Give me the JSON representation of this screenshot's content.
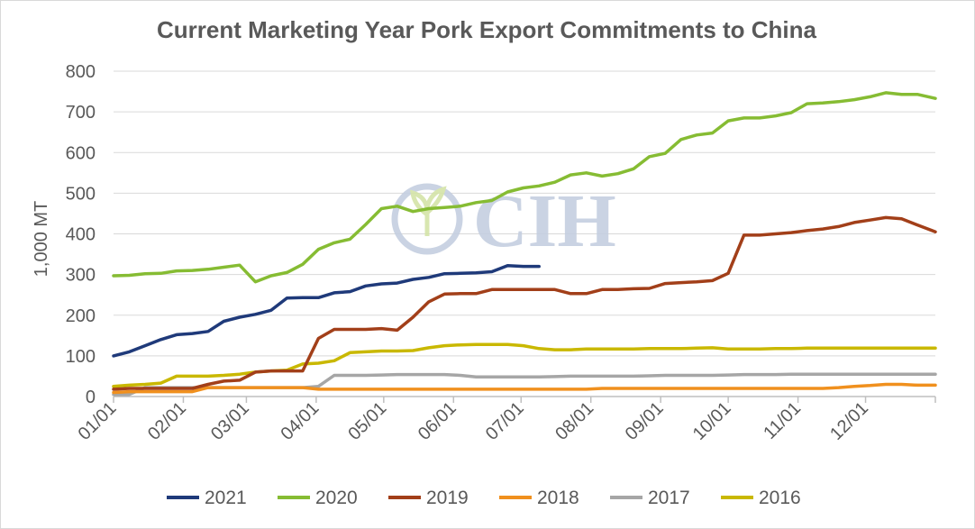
{
  "chart_data": {
    "type": "line",
    "title": "Current Marketing Year Pork Export Commitments to China",
    "ylabel": "1,000 MT",
    "xlabel": "",
    "ylim": [
      0,
      800
    ],
    "yticks": [
      "0",
      "100",
      "200",
      "300",
      "400",
      "500",
      "600",
      "700",
      "800"
    ],
    "xlim_day": [
      0,
      365
    ],
    "xticks": [
      {
        "label": "01/01",
        "day": 0
      },
      {
        "label": "02/01",
        "day": 31
      },
      {
        "label": "03/01",
        "day": 59
      },
      {
        "label": "04/01",
        "day": 90
      },
      {
        "label": "05/01",
        "day": 120
      },
      {
        "label": "06/01",
        "day": 151
      },
      {
        "label": "07/01",
        "day": 181
      },
      {
        "label": "08/01",
        "day": 212
      },
      {
        "label": "09/01",
        "day": 243
      },
      {
        "label": "10/01",
        "day": 273
      },
      {
        "label": "11/01",
        "day": 304
      },
      {
        "label": "12/01",
        "day": 334
      },
      {
        "label": "",
        "day": 365
      }
    ],
    "grid": true,
    "legend_position": "bottom",
    "watermark": "CIH",
    "series": [
      {
        "name": "2021",
        "color": "#1f3a7a",
        "points": [
          [
            0,
            100
          ],
          [
            7,
            110
          ],
          [
            14,
            125
          ],
          [
            21,
            140
          ],
          [
            28,
            152
          ],
          [
            35,
            155
          ],
          [
            42,
            160
          ],
          [
            49,
            185
          ],
          [
            56,
            195
          ],
          [
            63,
            202
          ],
          [
            70,
            212
          ],
          [
            77,
            242
          ],
          [
            84,
            243
          ],
          [
            91,
            243
          ],
          [
            98,
            255
          ],
          [
            105,
            258
          ],
          [
            112,
            272
          ],
          [
            119,
            277
          ],
          [
            126,
            279
          ],
          [
            133,
            288
          ],
          [
            140,
            293
          ],
          [
            147,
            302
          ],
          [
            154,
            303
          ],
          [
            161,
            304
          ],
          [
            168,
            307
          ],
          [
            175,
            322
          ],
          [
            182,
            320
          ],
          [
            189,
            320
          ]
        ]
      },
      {
        "name": "2020",
        "color": "#86bc33",
        "points": [
          [
            0,
            297
          ],
          [
            7,
            298
          ],
          [
            14,
            302
          ],
          [
            21,
            303
          ],
          [
            28,
            309
          ],
          [
            35,
            310
          ],
          [
            42,
            313
          ],
          [
            49,
            318
          ],
          [
            56,
            323
          ],
          [
            63,
            282
          ],
          [
            70,
            297
          ],
          [
            77,
            305
          ],
          [
            84,
            325
          ],
          [
            91,
            362
          ],
          [
            98,
            378
          ],
          [
            105,
            387
          ],
          [
            112,
            423
          ],
          [
            119,
            462
          ],
          [
            126,
            468
          ],
          [
            133,
            455
          ],
          [
            140,
            462
          ],
          [
            147,
            465
          ],
          [
            154,
            468
          ],
          [
            161,
            477
          ],
          [
            168,
            482
          ],
          [
            175,
            503
          ],
          [
            182,
            513
          ],
          [
            189,
            518
          ],
          [
            196,
            527
          ],
          [
            203,
            545
          ],
          [
            210,
            550
          ],
          [
            217,
            542
          ],
          [
            224,
            548
          ],
          [
            231,
            560
          ],
          [
            238,
            590
          ],
          [
            245,
            598
          ],
          [
            252,
            632
          ],
          [
            259,
            643
          ],
          [
            266,
            648
          ],
          [
            273,
            678
          ],
          [
            280,
            685
          ],
          [
            287,
            685
          ],
          [
            294,
            690
          ],
          [
            301,
            698
          ],
          [
            308,
            720
          ],
          [
            315,
            722
          ],
          [
            322,
            725
          ],
          [
            329,
            730
          ],
          [
            336,
            737
          ],
          [
            343,
            747
          ],
          [
            350,
            743
          ],
          [
            357,
            743
          ],
          [
            365,
            733
          ]
        ]
      },
      {
        "name": "2019",
        "color": "#a23f19",
        "points": [
          [
            0,
            18
          ],
          [
            7,
            20
          ],
          [
            14,
            20
          ],
          [
            21,
            20
          ],
          [
            28,
            20
          ],
          [
            35,
            20
          ],
          [
            42,
            30
          ],
          [
            49,
            38
          ],
          [
            56,
            40
          ],
          [
            63,
            60
          ],
          [
            70,
            63
          ],
          [
            77,
            63
          ],
          [
            84,
            63
          ],
          [
            91,
            143
          ],
          [
            98,
            165
          ],
          [
            105,
            165
          ],
          [
            112,
            165
          ],
          [
            119,
            167
          ],
          [
            126,
            163
          ],
          [
            133,
            195
          ],
          [
            140,
            233
          ],
          [
            147,
            252
          ],
          [
            154,
            253
          ],
          [
            161,
            253
          ],
          [
            168,
            263
          ],
          [
            175,
            263
          ],
          [
            182,
            263
          ],
          [
            189,
            263
          ],
          [
            196,
            263
          ],
          [
            203,
            253
          ],
          [
            210,
            253
          ],
          [
            217,
            263
          ],
          [
            224,
            263
          ],
          [
            231,
            265
          ],
          [
            238,
            266
          ],
          [
            245,
            278
          ],
          [
            252,
            280
          ],
          [
            259,
            282
          ],
          [
            266,
            285
          ],
          [
            273,
            303
          ],
          [
            280,
            397
          ],
          [
            287,
            397
          ],
          [
            294,
            400
          ],
          [
            301,
            403
          ],
          [
            308,
            408
          ],
          [
            315,
            412
          ],
          [
            322,
            418
          ],
          [
            329,
            428
          ],
          [
            336,
            434
          ],
          [
            343,
            440
          ],
          [
            350,
            437
          ],
          [
            357,
            422
          ],
          [
            365,
            405
          ]
        ]
      },
      {
        "name": "2018",
        "color": "#f0901e",
        "points": [
          [
            0,
            10
          ],
          [
            7,
            12
          ],
          [
            14,
            12
          ],
          [
            21,
            12
          ],
          [
            28,
            12
          ],
          [
            35,
            12
          ],
          [
            42,
            22
          ],
          [
            49,
            22
          ],
          [
            56,
            22
          ],
          [
            63,
            22
          ],
          [
            70,
            22
          ],
          [
            77,
            22
          ],
          [
            84,
            22
          ],
          [
            91,
            18
          ],
          [
            98,
            18
          ],
          [
            105,
            18
          ],
          [
            112,
            18
          ],
          [
            119,
            18
          ],
          [
            126,
            18
          ],
          [
            133,
            18
          ],
          [
            140,
            18
          ],
          [
            147,
            18
          ],
          [
            154,
            18
          ],
          [
            161,
            18
          ],
          [
            168,
            18
          ],
          [
            175,
            18
          ],
          [
            182,
            18
          ],
          [
            189,
            18
          ],
          [
            196,
            18
          ],
          [
            203,
            18
          ],
          [
            210,
            18
          ],
          [
            217,
            20
          ],
          [
            224,
            20
          ],
          [
            231,
            20
          ],
          [
            238,
            20
          ],
          [
            245,
            20
          ],
          [
            252,
            20
          ],
          [
            259,
            20
          ],
          [
            266,
            20
          ],
          [
            273,
            20
          ],
          [
            280,
            20
          ],
          [
            287,
            20
          ],
          [
            294,
            20
          ],
          [
            301,
            20
          ],
          [
            308,
            20
          ],
          [
            315,
            20
          ],
          [
            322,
            22
          ],
          [
            329,
            25
          ],
          [
            336,
            27
          ],
          [
            343,
            30
          ],
          [
            350,
            30
          ],
          [
            357,
            28
          ],
          [
            365,
            28
          ]
        ]
      },
      {
        "name": "2017",
        "color": "#a6a6a6",
        "points": [
          [
            0,
            5
          ],
          [
            7,
            5
          ],
          [
            14,
            22
          ],
          [
            21,
            22
          ],
          [
            28,
            22
          ],
          [
            35,
            22
          ],
          [
            42,
            22
          ],
          [
            49,
            22
          ],
          [
            56,
            22
          ],
          [
            63,
            22
          ],
          [
            70,
            22
          ],
          [
            77,
            22
          ],
          [
            84,
            22
          ],
          [
            91,
            25
          ],
          [
            98,
            52
          ],
          [
            105,
            52
          ],
          [
            112,
            52
          ],
          [
            119,
            53
          ],
          [
            126,
            54
          ],
          [
            133,
            54
          ],
          [
            140,
            54
          ],
          [
            147,
            54
          ],
          [
            154,
            52
          ],
          [
            161,
            48
          ],
          [
            168,
            48
          ],
          [
            175,
            48
          ],
          [
            182,
            48
          ],
          [
            189,
            48
          ],
          [
            196,
            49
          ],
          [
            203,
            50
          ],
          [
            210,
            50
          ],
          [
            217,
            50
          ],
          [
            224,
            50
          ],
          [
            231,
            50
          ],
          [
            238,
            51
          ],
          [
            245,
            52
          ],
          [
            252,
            52
          ],
          [
            259,
            52
          ],
          [
            266,
            52
          ],
          [
            273,
            53
          ],
          [
            280,
            54
          ],
          [
            287,
            54
          ],
          [
            294,
            54
          ],
          [
            301,
            55
          ],
          [
            308,
            55
          ],
          [
            315,
            55
          ],
          [
            322,
            55
          ],
          [
            329,
            55
          ],
          [
            336,
            55
          ],
          [
            343,
            55
          ],
          [
            350,
            55
          ],
          [
            357,
            55
          ],
          [
            365,
            55
          ]
        ]
      },
      {
        "name": "2016",
        "color": "#c9b800",
        "points": [
          [
            0,
            25
          ],
          [
            7,
            28
          ],
          [
            14,
            30
          ],
          [
            21,
            33
          ],
          [
            28,
            50
          ],
          [
            35,
            50
          ],
          [
            42,
            50
          ],
          [
            49,
            52
          ],
          [
            56,
            55
          ],
          [
            63,
            60
          ],
          [
            70,
            63
          ],
          [
            77,
            65
          ],
          [
            84,
            80
          ],
          [
            91,
            82
          ],
          [
            98,
            88
          ],
          [
            105,
            108
          ],
          [
            112,
            110
          ],
          [
            119,
            112
          ],
          [
            126,
            112
          ],
          [
            133,
            113
          ],
          [
            140,
            120
          ],
          [
            147,
            125
          ],
          [
            154,
            127
          ],
          [
            161,
            128
          ],
          [
            168,
            128
          ],
          [
            175,
            128
          ],
          [
            182,
            125
          ],
          [
            189,
            118
          ],
          [
            196,
            115
          ],
          [
            203,
            115
          ],
          [
            210,
            117
          ],
          [
            217,
            117
          ],
          [
            224,
            117
          ],
          [
            231,
            117
          ],
          [
            238,
            118
          ],
          [
            245,
            118
          ],
          [
            252,
            118
          ],
          [
            259,
            119
          ],
          [
            266,
            120
          ],
          [
            273,
            117
          ],
          [
            280,
            117
          ],
          [
            287,
            117
          ],
          [
            294,
            118
          ],
          [
            301,
            118
          ],
          [
            308,
            119
          ],
          [
            315,
            119
          ],
          [
            322,
            119
          ],
          [
            329,
            119
          ],
          [
            336,
            119
          ],
          [
            343,
            119
          ],
          [
            350,
            119
          ],
          [
            357,
            119
          ],
          [
            365,
            119
          ]
        ]
      }
    ]
  }
}
